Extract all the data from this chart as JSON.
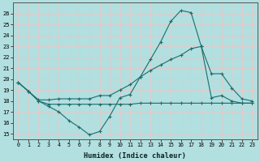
{
  "bg_color": "#b2dfdf",
  "grid_color": "#d4eeee",
  "line_color": "#1a6e6e",
  "xlabel": "Humidex (Indice chaleur)",
  "ylim": [
    14.5,
    27.0
  ],
  "xlim": [
    -0.5,
    23.5
  ],
  "yticks": [
    15,
    16,
    17,
    18,
    19,
    20,
    21,
    22,
    23,
    24,
    25,
    26
  ],
  "xticks": [
    0,
    1,
    2,
    3,
    4,
    5,
    6,
    7,
    8,
    9,
    10,
    11,
    12,
    13,
    14,
    15,
    16,
    17,
    18,
    19,
    20,
    21,
    22,
    23
  ],
  "line1": [
    19.7,
    18.9,
    18.0,
    17.5,
    17.0,
    16.2,
    15.6,
    14.9,
    15.2,
    16.6,
    18.3,
    18.6,
    20.2,
    21.8,
    23.4,
    25.3,
    26.3,
    26.1,
    23.0,
    18.3,
    18.5,
    18.0,
    17.8,
    17.8
  ],
  "line2": [
    19.7,
    18.9,
    18.1,
    18.1,
    18.2,
    18.2,
    18.2,
    18.2,
    18.5,
    18.5,
    19.0,
    19.5,
    20.2,
    20.8,
    21.3,
    21.8,
    22.2,
    22.8,
    23.0,
    20.5,
    20.5,
    19.2,
    18.2,
    18.0
  ],
  "line3": [
    19.7,
    18.9,
    18.0,
    17.7,
    17.7,
    17.7,
    17.7,
    17.7,
    17.7,
    17.7,
    17.7,
    17.7,
    17.8,
    17.8,
    17.8,
    17.8,
    17.8,
    17.8,
    17.8,
    17.8,
    17.8,
    17.8,
    17.8,
    17.8
  ]
}
